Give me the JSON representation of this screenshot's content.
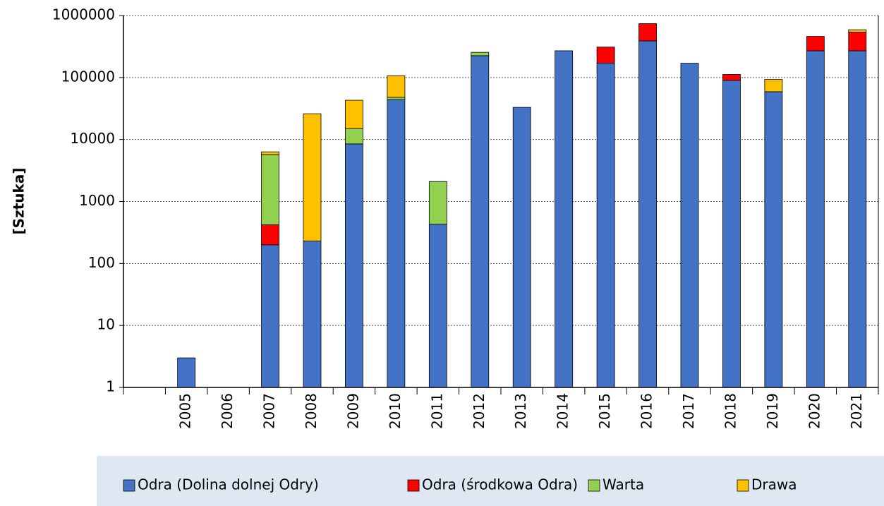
{
  "chart_data": {
    "type": "bar",
    "stacked": true,
    "log_scale": true,
    "grid": true,
    "legend": "bottom",
    "y_label": "[Sztuka]",
    "categories": [
      null,
      "2005",
      "2006",
      "2007",
      "2008",
      "2009",
      "2010",
      "2011",
      "2012",
      "2013",
      "2014",
      "2015",
      "2016",
      "2017",
      "2018",
      "2019",
      "2020",
      "2021"
    ],
    "series": [
      {
        "name": "Odra (Dolina dolnej Odry)",
        "color": "#4472c4",
        "values": [
          null,
          3,
          0,
          200,
          230,
          8500,
          44000,
          430,
          225000,
          33000,
          270000,
          170000,
          390000,
          170000,
          90000,
          59000,
          270000,
          270000
        ]
      },
      {
        "name": "Odra (środkowa Odra)",
        "color": "#ff0000",
        "values": [
          null,
          0,
          0,
          220,
          0,
          0,
          0,
          0,
          0,
          0,
          0,
          140000,
          350000,
          0,
          22000,
          0,
          190000,
          270000
        ]
      },
      {
        "name": "Warta",
        "color": "#92d050",
        "values": [
          null,
          0,
          0,
          5300,
          0,
          6500,
          4000,
          1670,
          30000,
          0,
          0,
          0,
          0,
          0,
          0,
          0,
          0,
          0
        ]
      },
      {
        "name": "Drawa",
        "color": "#ffc000",
        "values": [
          null,
          0,
          0,
          600,
          25800,
          28000,
          59000,
          0,
          0,
          0,
          0,
          0,
          0,
          0,
          0,
          34000,
          0,
          50000
        ]
      }
    ],
    "ylim": [
      1,
      1000000
    ],
    "yticks": [
      1,
      10,
      100,
      1000,
      10000,
      100000,
      1000000
    ]
  }
}
